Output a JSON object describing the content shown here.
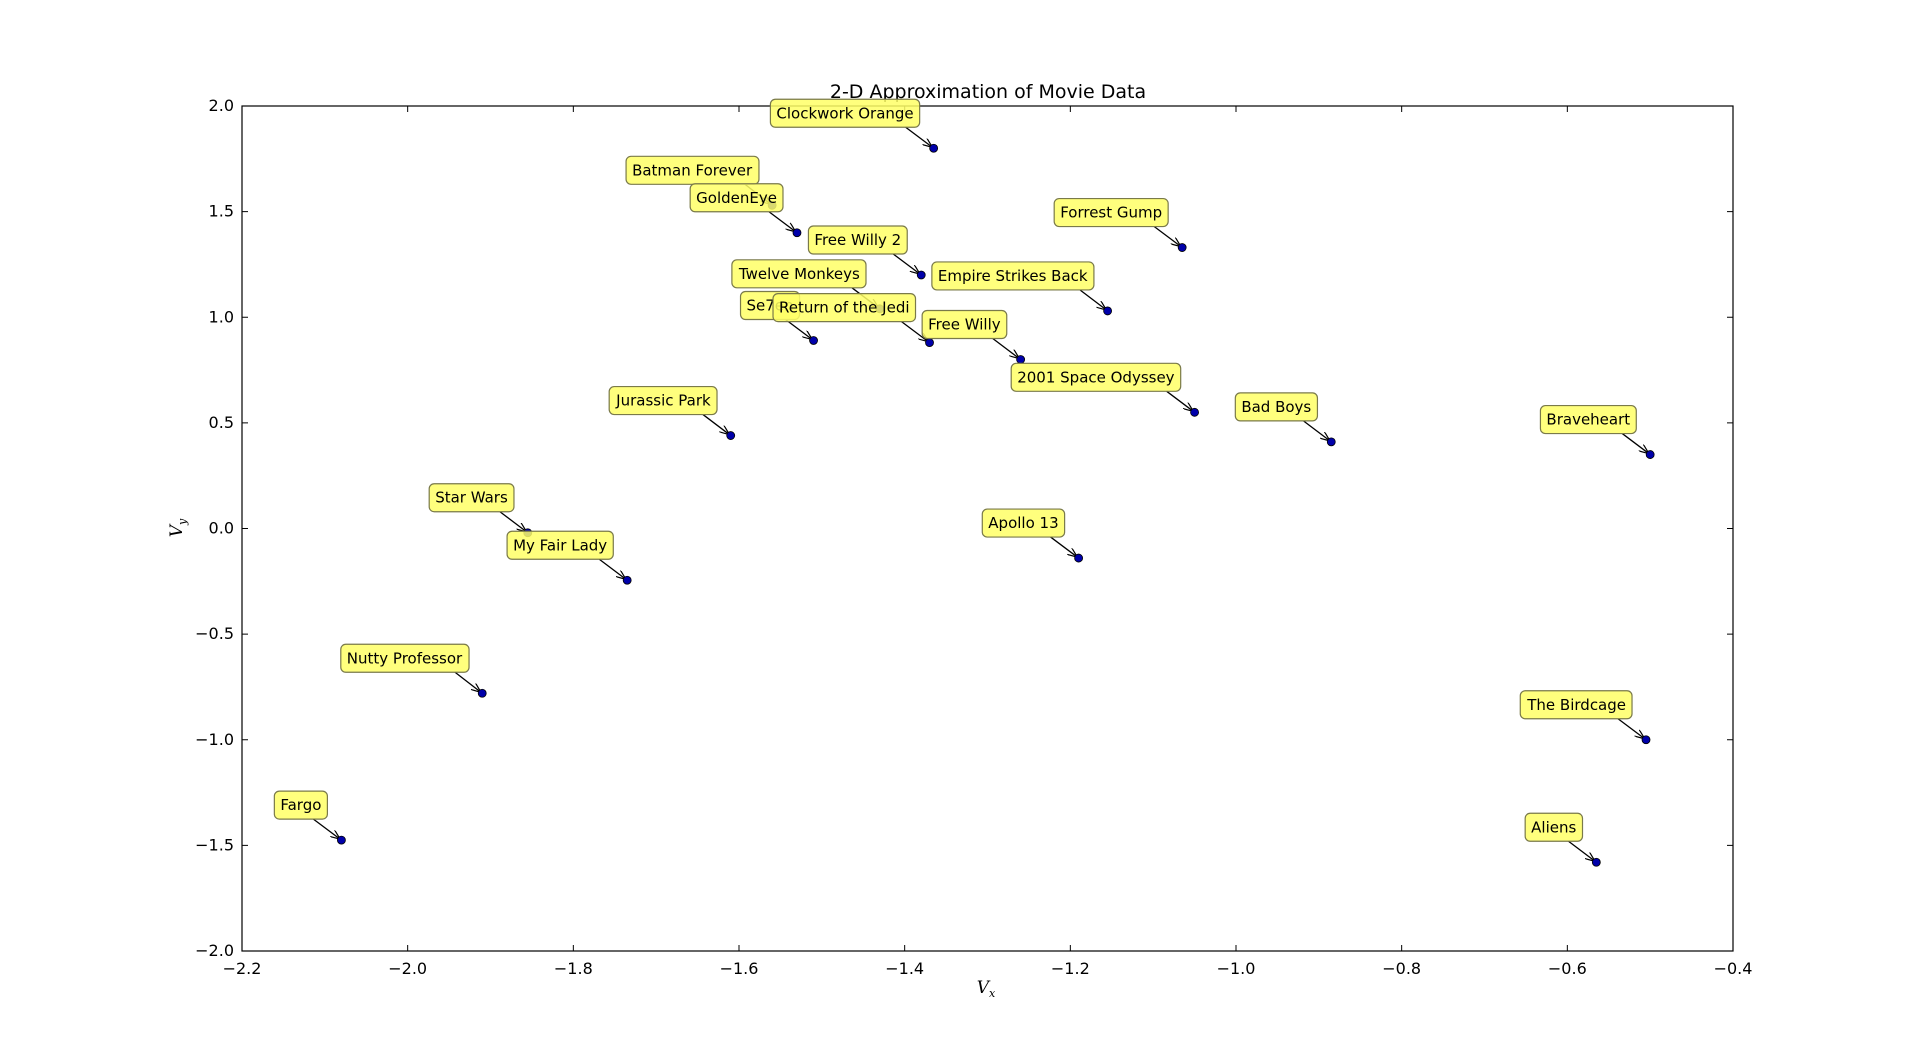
{
  "chart_data": {
    "type": "scatter",
    "title": "2-D Approximation of Movie Data",
    "xlabel": "V",
    "xlabel_sub": "x",
    "ylabel": "V",
    "ylabel_sub": "y",
    "xlim": [
      -2.2,
      -0.4
    ],
    "ylim": [
      -2.0,
      2.0
    ],
    "xticks": [
      -2.2,
      -2.0,
      -1.8,
      -1.6,
      -1.4,
      -1.2,
      -1.0,
      -0.8,
      -0.6,
      -0.4
    ],
    "xtick_labels": [
      "−2.2",
      "−2.0",
      "−1.8",
      "−1.6",
      "−1.4",
      "−1.2",
      "−1.0",
      "−0.8",
      "−0.6",
      "−0.4"
    ],
    "yticks": [
      2.0,
      1.5,
      1.0,
      0.5,
      0.0,
      -0.5,
      -1.0,
      -1.5,
      -2.0
    ],
    "ytick_labels": [
      "2.0",
      "1.5",
      "1.0",
      "0.5",
      "0.0",
      "−0.5",
      "−1.0",
      "−1.5",
      "−2.0"
    ],
    "grid": false,
    "point_color": "#0000aa",
    "label_color": "#ffff66",
    "points": [
      {
        "label": "Clockwork Orange",
        "x": -1.365,
        "y": 1.8
      },
      {
        "label": "Batman Forever",
        "x": -1.56,
        "y": 1.53
      },
      {
        "label": "GoldenEye",
        "x": -1.53,
        "y": 1.4
      },
      {
        "label": "Free Willy 2",
        "x": -1.38,
        "y": 1.2
      },
      {
        "label": "Forrest Gump",
        "x": -1.065,
        "y": 1.33
      },
      {
        "label": "Twelve Monkeys",
        "x": -1.43,
        "y": 1.04
      },
      {
        "label": "Empire Strikes Back",
        "x": -1.155,
        "y": 1.03
      },
      {
        "label": "Se7en",
        "x": -1.51,
        "y": 0.89
      },
      {
        "label": "Return of the Jedi",
        "x": -1.37,
        "y": 0.88
      },
      {
        "label": "Free Willy",
        "x": -1.26,
        "y": 0.8
      },
      {
        "label": "2001 Space Odyssey",
        "x": -1.05,
        "y": 0.55
      },
      {
        "label": "Bad Boys",
        "x": -0.885,
        "y": 0.41
      },
      {
        "label": "Braveheart",
        "x": -0.5,
        "y": 0.35
      },
      {
        "label": "Jurassic Park",
        "x": -1.61,
        "y": 0.44
      },
      {
        "label": "Star Wars",
        "x": -1.855,
        "y": -0.02
      },
      {
        "label": "My Fair Lady",
        "x": -1.735,
        "y": -0.245
      },
      {
        "label": "Apollo 13",
        "x": -1.19,
        "y": -0.14
      },
      {
        "label": "Nutty Professor",
        "x": -1.91,
        "y": -0.78
      },
      {
        "label": "The Birdcage",
        "x": -0.505,
        "y": -1.0
      },
      {
        "label": "Fargo",
        "x": -2.08,
        "y": -1.475
      },
      {
        "label": "Aliens",
        "x": -0.565,
        "y": -1.58
      }
    ]
  }
}
